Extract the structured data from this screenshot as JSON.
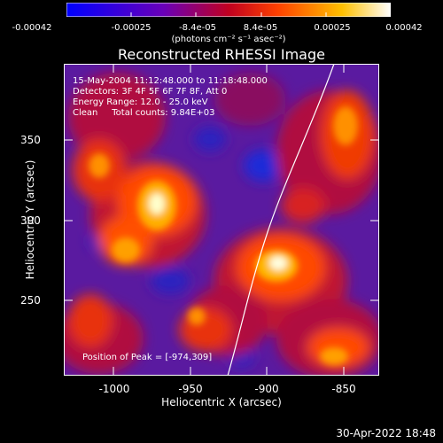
{
  "colorbar": {
    "ticks": [
      "-0.00042",
      "-0.00025",
      "-8.4e-05",
      "8.4e-05",
      "0.00025",
      "0.00042"
    ],
    "units": "(photons cm⁻² s⁻¹ asec⁻²)",
    "range": [
      -0.00042,
      0.00042
    ],
    "colors": [
      "#0000ff",
      "#6a00b8",
      "#c00020",
      "#ff4000",
      "#ffc000",
      "#ffffff"
    ]
  },
  "title": "Reconstructed RHESSI Image",
  "annotations": {
    "line1": "15-May-2004 11:12:48.000 to 11:18:48.000",
    "line2": "Detectors: 3F 4F 5F 6F 7F 8F, Att 0",
    "line3": "Energy Range: 12.0 - 25.0 keV",
    "line4": "Clean     Total counts: 9.84E+03",
    "peak": "Position of Peak = [-974,309]"
  },
  "x_axis": {
    "label": "Heliocentric X (arcsec)",
    "ticks": [
      "-1000",
      "-950",
      "-900",
      "-850"
    ],
    "range": [
      -1030,
      -835
    ]
  },
  "y_axis": {
    "label": "Heliocentric Y (arcsec)",
    "ticks": [
      "250",
      "300",
      "350"
    ],
    "range": [
      200,
      395
    ]
  },
  "footer_date": "30-Apr-2022 18:48"
}
